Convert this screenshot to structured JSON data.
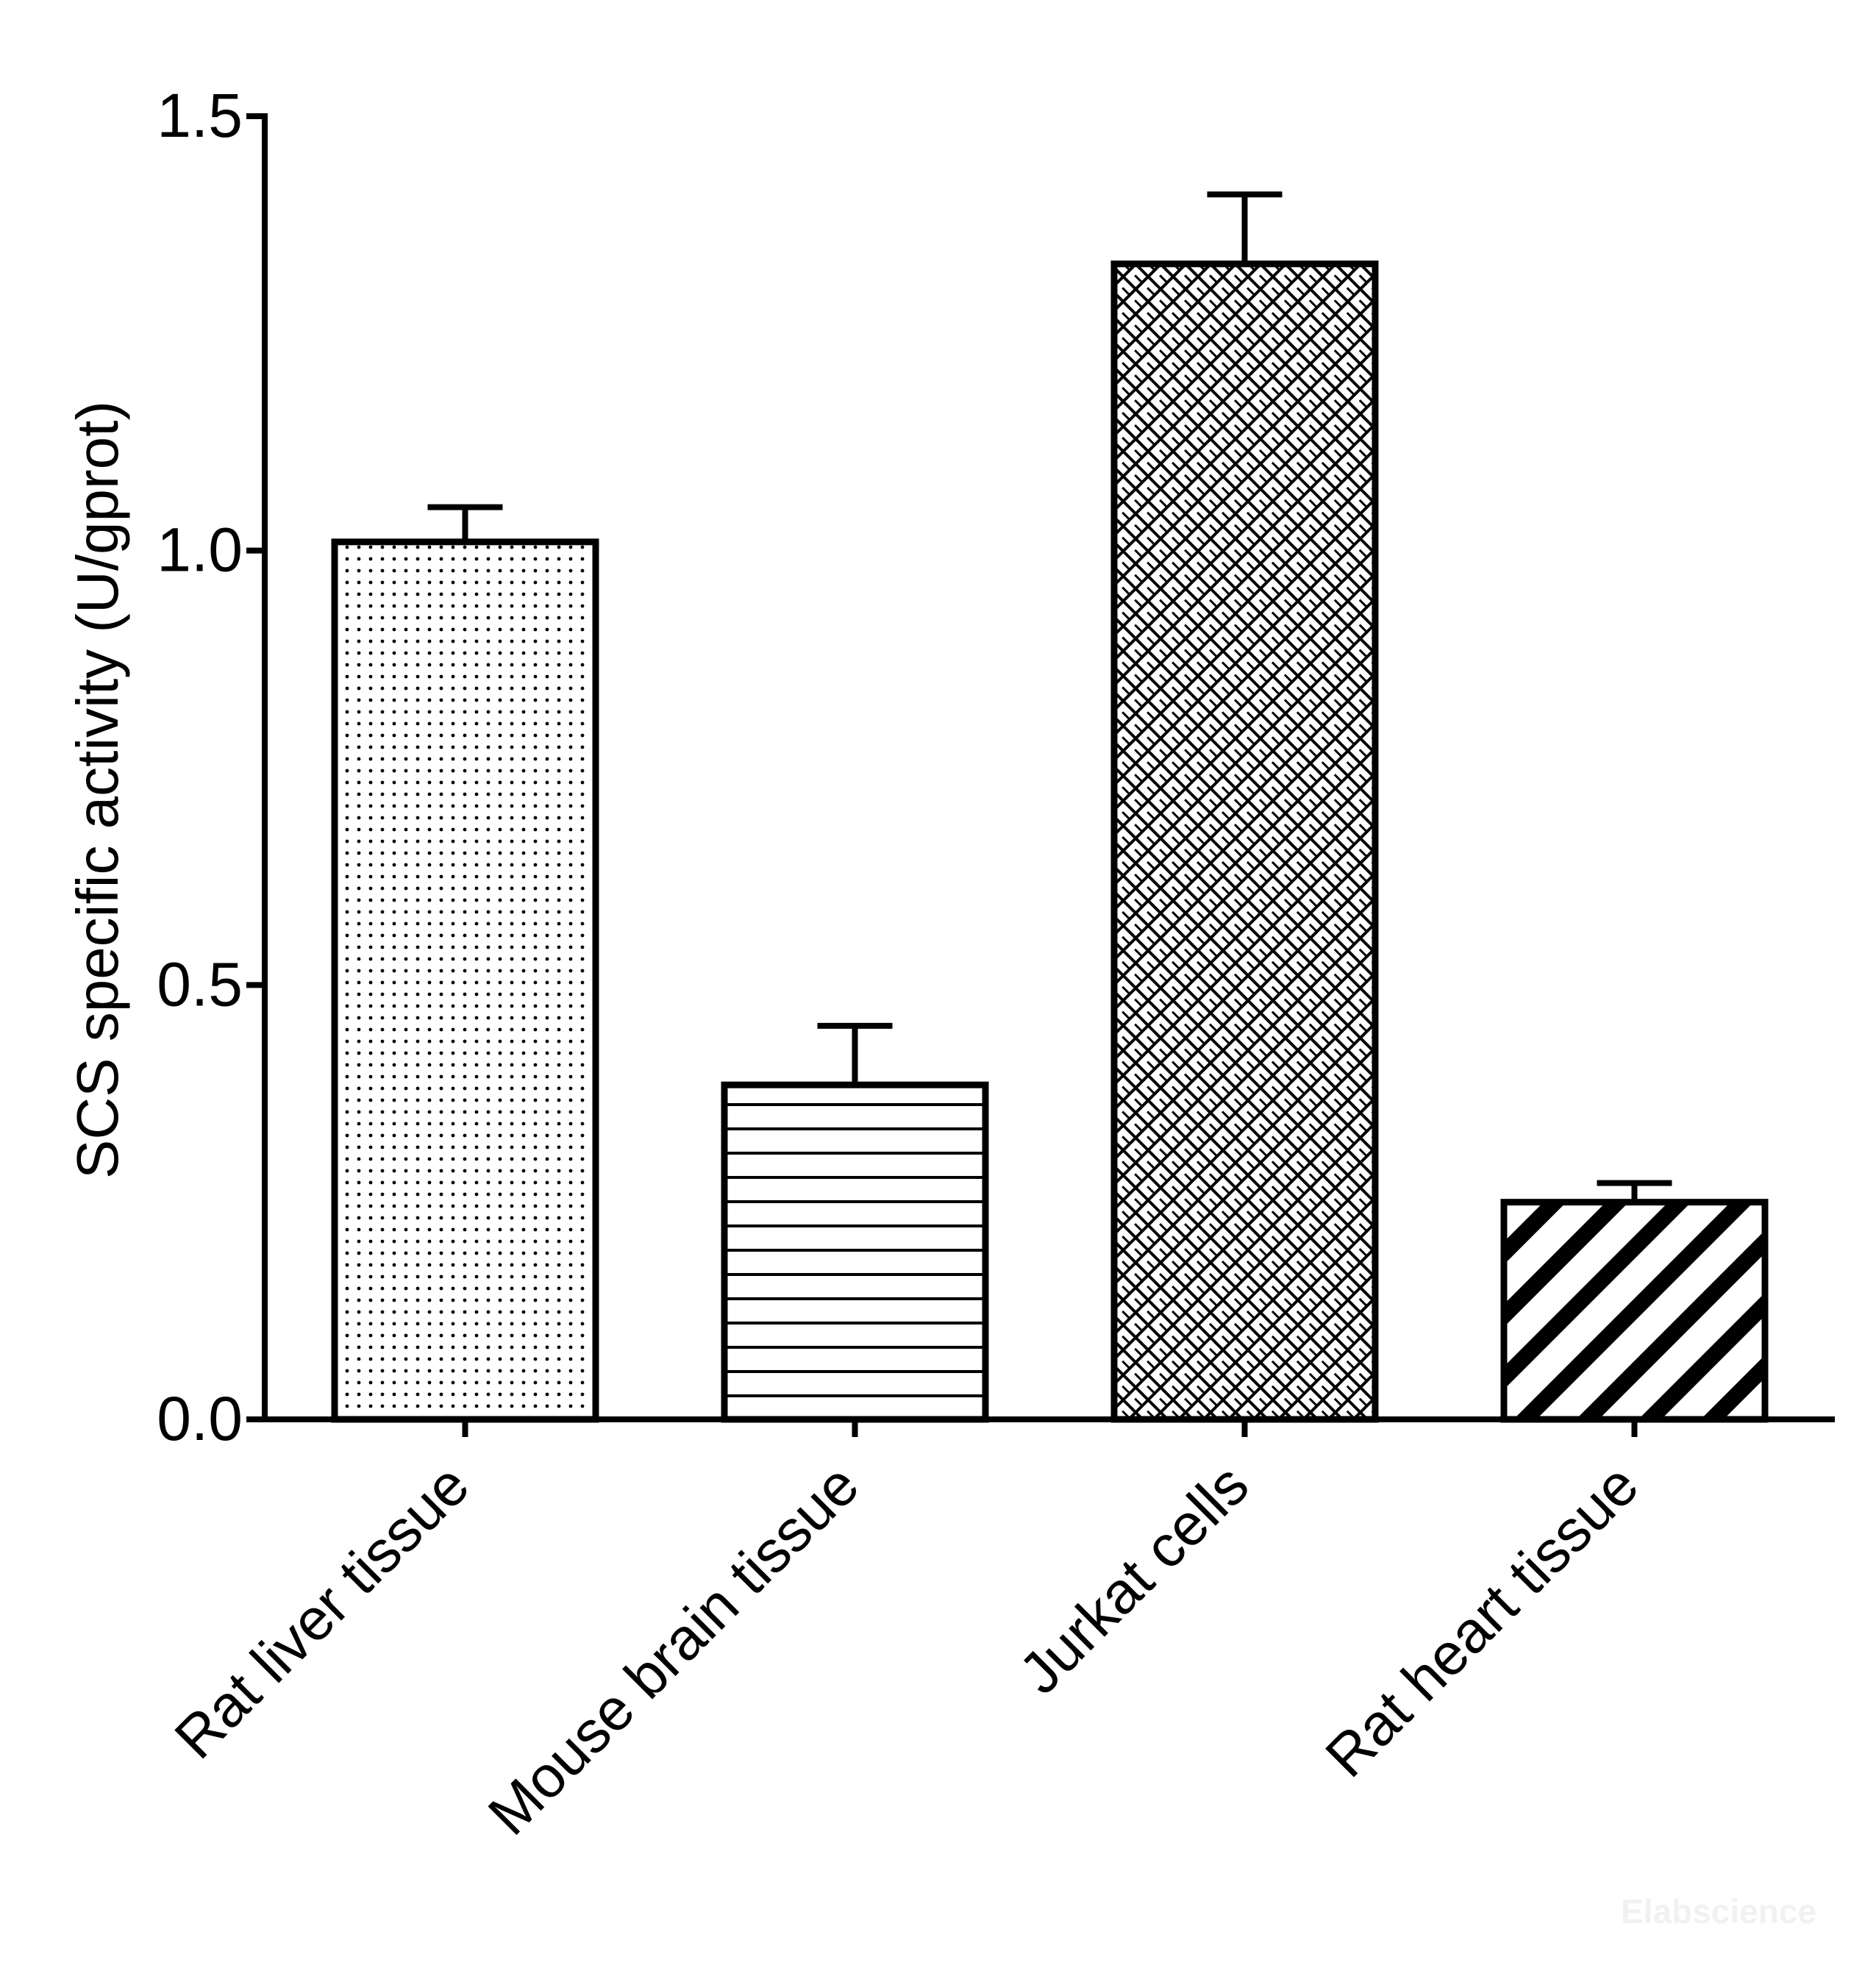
{
  "chart_data": {
    "type": "bar",
    "title": "",
    "xlabel": "",
    "ylabel": "SCS specific activity (U/gprot)",
    "ylim": [
      0,
      1.5
    ],
    "yticks": [
      "0.0",
      "0.5",
      "1.0",
      "1.5"
    ],
    "ytick_values": [
      0,
      0.5,
      1.0,
      1.5
    ],
    "categories": [
      "Rat liver tissue",
      "Mouse brain tissue",
      "Jurkat cells",
      "Rat heart tissue"
    ],
    "values": [
      1.01,
      0.385,
      1.33,
      0.25
    ],
    "error_upper": [
      0.04,
      0.068,
      0.08,
      0.022
    ],
    "patterns": [
      "dots",
      "horizontal-lines",
      "crosshatch",
      "diagonal-stripes"
    ],
    "grid": false,
    "legend": "none"
  },
  "watermark": "Elabscience"
}
